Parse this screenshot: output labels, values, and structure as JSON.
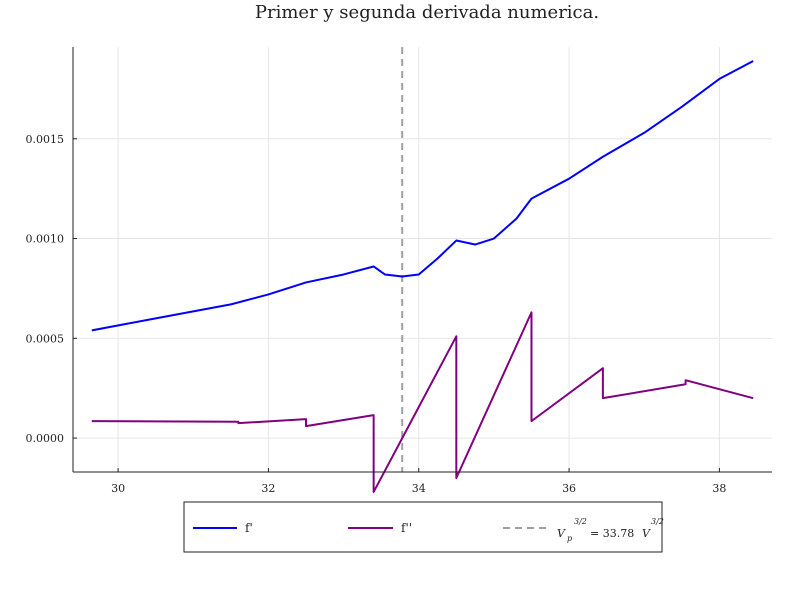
{
  "chart_data": {
    "type": "line",
    "title": "Primer y segunda derivada numerica.",
    "xlabel": "",
    "ylabel": "",
    "xlim": [
      29.4,
      38.7
    ],
    "ylim": [
      -0.00017,
      0.00196
    ],
    "xticks": [
      30,
      32,
      34,
      36,
      38
    ],
    "xtick_labels": [
      "30",
      "32",
      "34",
      "36",
      "38"
    ],
    "yticks": [
      0.0,
      0.0005,
      0.001,
      0.0015
    ],
    "ytick_labels": [
      "0.0000",
      "0.0005",
      "0.0010",
      "0.0015"
    ],
    "grid": true,
    "legend_position": "bottom",
    "series": [
      {
        "name": "f'",
        "color": "#0000ff",
        "points": [
          [
            29.65,
            0.00054
          ],
          [
            30.5,
            0.0006
          ],
          [
            31.5,
            0.00067
          ],
          [
            32.0,
            0.00072
          ],
          [
            32.5,
            0.00078
          ],
          [
            33.0,
            0.00082
          ],
          [
            33.4,
            0.00086
          ],
          [
            33.55,
            0.00082
          ],
          [
            33.78,
            0.00081
          ],
          [
            34.0,
            0.00082
          ],
          [
            34.25,
            0.0009
          ],
          [
            34.5,
            0.00099
          ],
          [
            34.75,
            0.00097
          ],
          [
            35.0,
            0.001
          ],
          [
            35.3,
            0.0011
          ],
          [
            35.5,
            0.0012
          ],
          [
            36.0,
            0.0013
          ],
          [
            36.45,
            0.00141
          ],
          [
            37.0,
            0.00153
          ],
          [
            37.5,
            0.00166
          ],
          [
            38.0,
            0.0018
          ],
          [
            38.45,
            0.00189
          ]
        ]
      },
      {
        "name": "f''",
        "color": "#800080",
        "points": [
          [
            29.65,
            8.5e-05
          ],
          [
            31.6,
            8.2e-05
          ],
          [
            31.6,
            7.5e-05
          ],
          [
            32.5,
            9.5e-05
          ],
          [
            32.5,
            6e-05
          ],
          [
            33.4,
            0.000115
          ],
          [
            33.4,
            -0.00027
          ],
          [
            34.5,
            0.00051
          ],
          [
            34.5,
            -0.0002
          ],
          [
            35.5,
            0.00063
          ],
          [
            35.5,
            8.5e-05
          ],
          [
            36.45,
            0.00035
          ],
          [
            36.45,
            0.0002
          ],
          [
            37.55,
            0.00027
          ],
          [
            37.55,
            0.00029
          ],
          [
            38.45,
            0.0002
          ]
        ]
      }
    ],
    "vline": {
      "x": 33.78,
      "color": "#a0a0a0",
      "label_main": "V",
      "label_sub": "p",
      "label_exp": "3/2",
      "label_rest": "=  33.78",
      "label_unit": "V",
      "label_unit_exp": "3/2"
    }
  }
}
